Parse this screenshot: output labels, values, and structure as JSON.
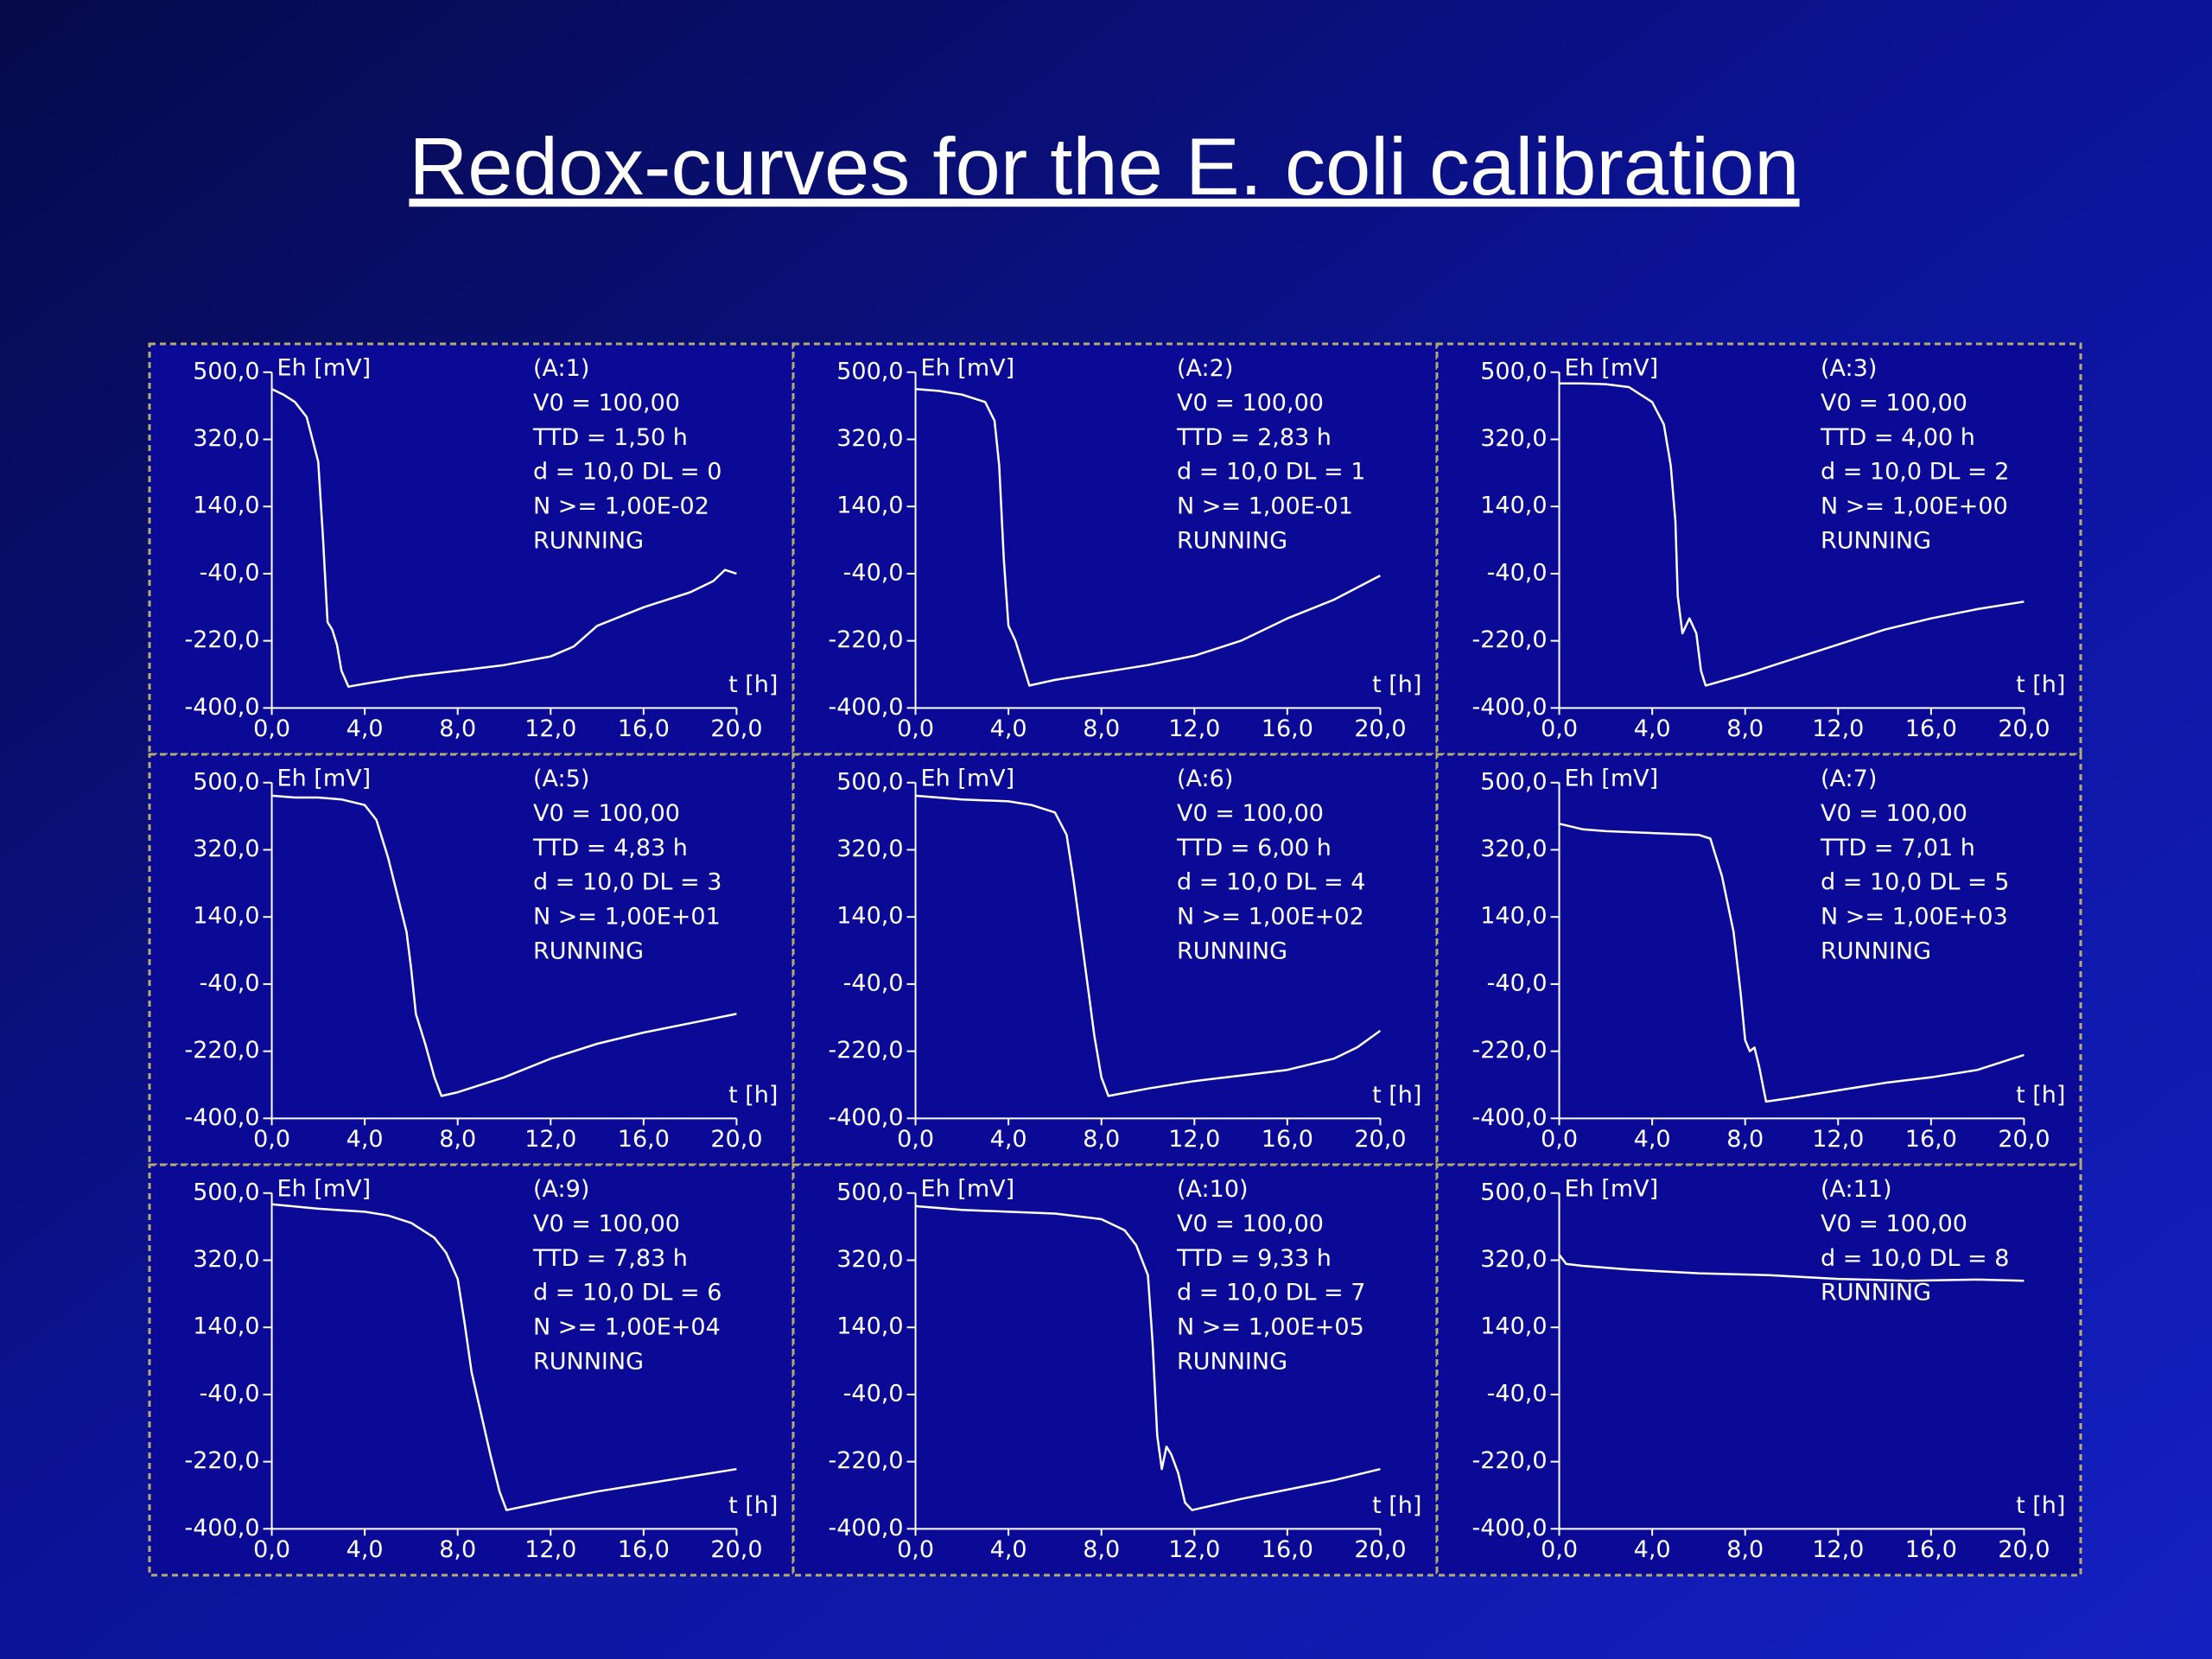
{
  "title": "Redox-curves for the E. coli calibration",
  "chart_data": [
    {
      "type": "line",
      "title": "(A:1)",
      "annotations": [
        "V0 = 100,00",
        "TTD = 1,50 h",
        "d = 10,0 DL = 0",
        "N >= 1,00E-02",
        "RUNNING"
      ],
      "ylabel": "Eh [mV]",
      "xlabel": "t [h]",
      "color": "#ffffff",
      "x": [
        0,
        0.5,
        1,
        1.5,
        2,
        2.2,
        2.4,
        2.6,
        2.8,
        3.0,
        3.3,
        4,
        6,
        8,
        10,
        12,
        13,
        14,
        16,
        18,
        19,
        19.5,
        20
      ],
      "values": [
        455,
        440,
        420,
        380,
        260,
        60,
        -170,
        -190,
        -230,
        -300,
        -343,
        -335,
        -315,
        -300,
        -285,
        -262,
        -235,
        -180,
        -130,
        -90,
        -60,
        -30,
        -40
      ],
      "xlim": [
        0,
        20
      ],
      "ylim": [
        -400,
        500
      ],
      "xticks": [
        {
          "value": 0,
          "label": "0,0"
        },
        {
          "value": 4,
          "label": "4,0"
        },
        {
          "value": 8,
          "label": "8,0"
        },
        {
          "value": 12,
          "label": "12,0"
        },
        {
          "value": 16,
          "label": "16,0"
        },
        {
          "value": 20,
          "label": "20,0"
        }
      ],
      "yticks": [
        {
          "value": -400,
          "label": "-400,0"
        },
        {
          "value": -220,
          "label": "-220,0"
        },
        {
          "value": -40,
          "label": "-40,0"
        },
        {
          "value": 140,
          "label": "140,0"
        },
        {
          "value": 320,
          "label": "320,0"
        },
        {
          "value": 500,
          "label": "500,0"
        }
      ]
    },
    {
      "type": "line",
      "title": "(A:2)",
      "annotations": [
        "V0 = 100,00",
        "TTD = 2,83 h",
        "d = 10,0 DL = 1",
        "N >= 1,00E-01",
        "RUNNING"
      ],
      "ylabel": "Eh [mV]",
      "xlabel": "t [h]",
      "color": "#ffffff",
      "x": [
        0,
        1,
        2,
        3,
        3.4,
        3.6,
        3.8,
        4.0,
        4.3,
        4.6,
        4.9,
        6,
        8,
        10,
        12,
        14,
        16,
        18,
        20
      ],
      "values": [
        455,
        450,
        440,
        420,
        370,
        250,
        0,
        -180,
        -220,
        -280,
        -340,
        -325,
        -305,
        -285,
        -260,
        -220,
        -160,
        -110,
        -45
      ],
      "xlim": [
        0,
        20
      ],
      "ylim": [
        -400,
        500
      ],
      "xticks": [
        {
          "value": 0,
          "label": "0,0"
        },
        {
          "value": 4,
          "label": "4,0"
        },
        {
          "value": 8,
          "label": "8,0"
        },
        {
          "value": 12,
          "label": "12,0"
        },
        {
          "value": 16,
          "label": "16,0"
        },
        {
          "value": 20,
          "label": "20,0"
        }
      ],
      "yticks": [
        {
          "value": -400,
          "label": "-400,0"
        },
        {
          "value": -220,
          "label": "-220,0"
        },
        {
          "value": -40,
          "label": "-40,0"
        },
        {
          "value": 140,
          "label": "140,0"
        },
        {
          "value": 320,
          "label": "320,0"
        },
        {
          "value": 500,
          "label": "500,0"
        }
      ]
    },
    {
      "type": "line",
      "title": "(A:3)",
      "annotations": [
        "V0 = 100,00",
        "TTD = 4,00 h",
        "d = 10,0 DL = 2",
        "N >= 1,00E+00",
        "RUNNING"
      ],
      "ylabel": "Eh [mV]",
      "xlabel": "t [h]",
      "color": "#ffffff",
      "x": [
        0,
        1,
        2,
        3,
        4,
        4.5,
        4.8,
        5.0,
        5.1,
        5.3,
        5.6,
        5.9,
        6.1,
        6.3,
        8,
        10,
        12,
        14,
        16,
        18,
        20
      ],
      "values": [
        470,
        470,
        468,
        460,
        420,
        360,
        250,
        100,
        -100,
        -200,
        -160,
        -200,
        -300,
        -340,
        -310,
        -270,
        -230,
        -190,
        -160,
        -135,
        -115
      ],
      "xlim": [
        0,
        20
      ],
      "ylim": [
        -400,
        500
      ],
      "xticks": [
        {
          "value": 0,
          "label": "0,0"
        },
        {
          "value": 4,
          "label": "4,0"
        },
        {
          "value": 8,
          "label": "8,0"
        },
        {
          "value": 12,
          "label": "12,0"
        },
        {
          "value": 16,
          "label": "16,0"
        },
        {
          "value": 20,
          "label": "20,0"
        }
      ],
      "yticks": [
        {
          "value": -400,
          "label": "-400,0"
        },
        {
          "value": -220,
          "label": "-220,0"
        },
        {
          "value": -40,
          "label": "-40,0"
        },
        {
          "value": 140,
          "label": "140,0"
        },
        {
          "value": 320,
          "label": "320,0"
        },
        {
          "value": 500,
          "label": "500,0"
        }
      ]
    },
    {
      "type": "line",
      "title": "(A:5)",
      "annotations": [
        "V0 = 100,00",
        "TTD = 4,83 h",
        "d = 10,0 DL = 3",
        "N >= 1,00E+01",
        "RUNNING"
      ],
      "ylabel": "Eh [mV]",
      "xlabel": "t [h]",
      "color": "#ffffff",
      "x": [
        0,
        1,
        2,
        3,
        4,
        4.5,
        5,
        5.4,
        5.8,
        6.0,
        6.2,
        6.6,
        7.0,
        7.3,
        8,
        10,
        12,
        14,
        16,
        18,
        20
      ],
      "values": [
        465,
        460,
        460,
        455,
        440,
        400,
        300,
        200,
        100,
        0,
        -120,
        -200,
        -290,
        -340,
        -330,
        -290,
        -240,
        -200,
        -170,
        -145,
        -120
      ],
      "xlim": [
        0,
        20
      ],
      "ylim": [
        -400,
        500
      ],
      "xticks": [
        {
          "value": 0,
          "label": "0,0"
        },
        {
          "value": 4,
          "label": "4,0"
        },
        {
          "value": 8,
          "label": "8,0"
        },
        {
          "value": 12,
          "label": "12,0"
        },
        {
          "value": 16,
          "label": "16,0"
        },
        {
          "value": 20,
          "label": "20,0"
        }
      ],
      "yticks": [
        {
          "value": -400,
          "label": "-400,0"
        },
        {
          "value": -220,
          "label": "-220,0"
        },
        {
          "value": -40,
          "label": "-40,0"
        },
        {
          "value": 140,
          "label": "140,0"
        },
        {
          "value": 320,
          "label": "320,0"
        },
        {
          "value": 500,
          "label": "500,0"
        }
      ]
    },
    {
      "type": "line",
      "title": "(A:6)",
      "annotations": [
        "V0 = 100,00",
        "TTD = 6,00 h",
        "d = 10,0 DL = 4",
        "N >= 1,00E+02",
        "RUNNING"
      ],
      "ylabel": "Eh [mV]",
      "xlabel": "t [h]",
      "color": "#ffffff",
      "x": [
        0,
        2,
        4,
        5,
        6,
        6.5,
        6.8,
        7.1,
        7.4,
        7.7,
        8.0,
        8.3,
        10,
        12,
        14,
        16,
        18,
        19,
        20
      ],
      "values": [
        465,
        455,
        450,
        440,
        420,
        360,
        240,
        100,
        -40,
        -180,
        -290,
        -340,
        -320,
        -300,
        -285,
        -270,
        -240,
        -210,
        -165
      ],
      "xlim": [
        0,
        20
      ],
      "ylim": [
        -400,
        500
      ],
      "xticks": [
        {
          "value": 0,
          "label": "0,0"
        },
        {
          "value": 4,
          "label": "4,0"
        },
        {
          "value": 8,
          "label": "8,0"
        },
        {
          "value": 12,
          "label": "12,0"
        },
        {
          "value": 16,
          "label": "16,0"
        },
        {
          "value": 20,
          "label": "20,0"
        }
      ],
      "yticks": [
        {
          "value": -400,
          "label": "-400,0"
        },
        {
          "value": -220,
          "label": "-220,0"
        },
        {
          "value": -40,
          "label": "-40,0"
        },
        {
          "value": 140,
          "label": "140,0"
        },
        {
          "value": 320,
          "label": "320,0"
        },
        {
          "value": 500,
          "label": "500,0"
        }
      ]
    },
    {
      "type": "line",
      "title": "(A:7)",
      "annotations": [
        "V0 = 100,00",
        "TTD = 7,01 h",
        "d = 10,0 DL = 5",
        "N >= 1,00E+03",
        "RUNNING"
      ],
      "ylabel": "Eh [mV]",
      "xlabel": "t [h]",
      "color": "#ffffff",
      "x": [
        0,
        1,
        2,
        4,
        6,
        6.5,
        7,
        7.5,
        7.8,
        8.0,
        8.2,
        8.4,
        8.6,
        8.9,
        10,
        12,
        14,
        16,
        18,
        19.5,
        20
      ],
      "values": [
        390,
        375,
        370,
        365,
        360,
        350,
        250,
        100,
        -60,
        -190,
        -220,
        -210,
        -260,
        -355,
        -345,
        -325,
        -305,
        -290,
        -270,
        -240,
        -230
      ],
      "xlim": [
        0,
        20
      ],
      "ylim": [
        -400,
        500
      ],
      "xticks": [
        {
          "value": 0,
          "label": "0,0"
        },
        {
          "value": 4,
          "label": "4,0"
        },
        {
          "value": 8,
          "label": "8,0"
        },
        {
          "value": 12,
          "label": "12,0"
        },
        {
          "value": 16,
          "label": "16,0"
        },
        {
          "value": 20,
          "label": "20,0"
        }
      ],
      "yticks": [
        {
          "value": -400,
          "label": "-400,0"
        },
        {
          "value": -220,
          "label": "-220,0"
        },
        {
          "value": -40,
          "label": "-40,0"
        },
        {
          "value": 140,
          "label": "140,0"
        },
        {
          "value": 320,
          "label": "320,0"
        },
        {
          "value": 500,
          "label": "500,0"
        }
      ]
    },
    {
      "type": "line",
      "title": "(A:9)",
      "annotations": [
        "V0 = 100,00",
        "TTD = 7,83 h",
        "d = 10,0 DL = 6",
        "N >= 1,00E+04",
        "RUNNING"
      ],
      "ylabel": "Eh [mV]",
      "xlabel": "t [h]",
      "color": "#ffffff",
      "x": [
        0,
        2,
        4,
        5,
        6,
        7,
        7.5,
        8,
        8.3,
        8.6,
        9,
        9.4,
        9.8,
        10.1,
        12,
        14,
        16,
        18,
        20
      ],
      "values": [
        470,
        458,
        450,
        440,
        420,
        380,
        340,
        270,
        150,
        20,
        -90,
        -200,
        -300,
        -350,
        -325,
        -300,
        -280,
        -260,
        -240
      ],
      "xlim": [
        0,
        20
      ],
      "ylim": [
        -400,
        500
      ],
      "xticks": [
        {
          "value": 0,
          "label": "0,0"
        },
        {
          "value": 4,
          "label": "4,0"
        },
        {
          "value": 8,
          "label": "8,0"
        },
        {
          "value": 12,
          "label": "12,0"
        },
        {
          "value": 16,
          "label": "16,0"
        },
        {
          "value": 20,
          "label": "20,0"
        }
      ],
      "yticks": [
        {
          "value": -400,
          "label": "-400,0"
        },
        {
          "value": -220,
          "label": "-220,0"
        },
        {
          "value": -40,
          "label": "-40,0"
        },
        {
          "value": 140,
          "label": "140,0"
        },
        {
          "value": 320,
          "label": "320,0"
        },
        {
          "value": 500,
          "label": "500,0"
        }
      ]
    },
    {
      "type": "line",
      "title": "(A:10)",
      "annotations": [
        "V0 = 100,00",
        "TTD = 9,33 h",
        "d = 10,0 DL = 7",
        "N >= 1,00E+05",
        "RUNNING"
      ],
      "ylabel": "Eh [mV]",
      "xlabel": "t [h]",
      "color": "#ffffff",
      "x": [
        0,
        2,
        4,
        6,
        8,
        9,
        9.5,
        10,
        10.2,
        10.4,
        10.6,
        10.8,
        11.0,
        11.3,
        11.6,
        11.9,
        14,
        16,
        18,
        20
      ],
      "values": [
        465,
        455,
        450,
        445,
        430,
        400,
        360,
        280,
        100,
        -150,
        -240,
        -180,
        -200,
        -250,
        -330,
        -350,
        -320,
        -295,
        -270,
        -240
      ],
      "xlim": [
        0,
        20
      ],
      "ylim": [
        -400,
        500
      ],
      "xticks": [
        {
          "value": 0,
          "label": "0,0"
        },
        {
          "value": 4,
          "label": "4,0"
        },
        {
          "value": 8,
          "label": "8,0"
        },
        {
          "value": 12,
          "label": "12,0"
        },
        {
          "value": 16,
          "label": "16,0"
        },
        {
          "value": 20,
          "label": "20,0"
        }
      ],
      "yticks": [
        {
          "value": -400,
          "label": "-400,0"
        },
        {
          "value": -220,
          "label": "-220,0"
        },
        {
          "value": -40,
          "label": "-40,0"
        },
        {
          "value": 140,
          "label": "140,0"
        },
        {
          "value": 320,
          "label": "320,0"
        },
        {
          "value": 500,
          "label": "500,0"
        }
      ]
    },
    {
      "type": "line",
      "title": "(A:11)",
      "annotations": [
        "V0 = 100,00",
        "d = 10,0 DL = 8",
        "RUNNING"
      ],
      "ylabel": "Eh [mV]",
      "xlabel": "t [h]",
      "color": "#ffffff",
      "x": [
        0,
        0.3,
        1,
        3,
        6,
        9,
        12,
        15,
        18,
        20
      ],
      "values": [
        335,
        310,
        305,
        295,
        285,
        280,
        270,
        265,
        268,
        265
      ],
      "xlim": [
        0,
        20
      ],
      "ylim": [
        -400,
        500
      ],
      "xticks": [
        {
          "value": 0,
          "label": "0,0"
        },
        {
          "value": 4,
          "label": "4,0"
        },
        {
          "value": 8,
          "label": "8,0"
        },
        {
          "value": 12,
          "label": "12,0"
        },
        {
          "value": 16,
          "label": "16,0"
        },
        {
          "value": 20,
          "label": "20,0"
        }
      ],
      "yticks": [
        {
          "value": -400,
          "label": "-400,0"
        },
        {
          "value": -220,
          "label": "-220,0"
        },
        {
          "value": -40,
          "label": "-40,0"
        },
        {
          "value": 140,
          "label": "140,0"
        },
        {
          "value": 320,
          "label": "320,0"
        },
        {
          "value": 500,
          "label": "500,0"
        }
      ]
    }
  ]
}
